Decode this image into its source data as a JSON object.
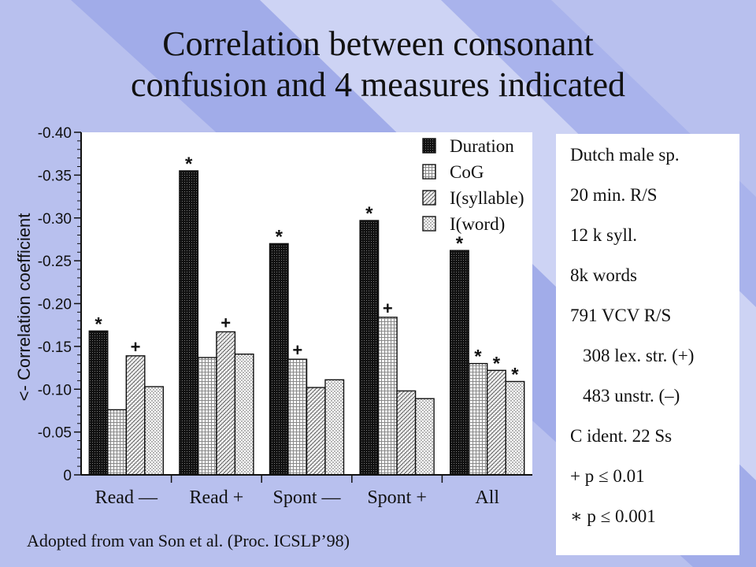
{
  "title": {
    "line1": "Correlation between consonant",
    "line2": "confusion and 4 measures indicated"
  },
  "source_note": "Adopted from van Son et al. (Proc. ICSLP’98)",
  "info_panel": [
    "Dutch male sp.",
    "20 min. R/S",
    "12 k syll.",
    "8k words",
    "791 VCV R/S",
    "308 lex. str. (+)",
    "483 unstr. (–)",
    "C ident. 22 Ss",
    "+ p ≤ 0.01",
    "∗ p ≤ 0.001"
  ],
  "colors": {
    "background": "#b8c0ee",
    "stripe": "#8e9be6",
    "stripe_light": "#e4e7fa",
    "panel": "#ffffff"
  },
  "chart_data": {
    "type": "bar",
    "ylabel": "<- Correlation coefficient",
    "y_axis_inverted": true,
    "ylim": [
      0,
      -0.4
    ],
    "yticks": [
      "-0.40",
      "-0.35",
      "-0.30",
      "-0.25",
      "-0.20",
      "-0.15",
      "-0.10",
      "-0.05",
      "0"
    ],
    "categories": [
      "Read —",
      "Read +",
      "Spont —",
      "Spont +",
      "All"
    ],
    "legend_position": "top-right",
    "series": [
      {
        "name": "Duration",
        "values": [
          -0.168,
          -0.355,
          -0.27,
          -0.297,
          -0.262
        ],
        "markers": [
          "*",
          "*",
          "*",
          "*",
          "*"
        ]
      },
      {
        "name": "CoG",
        "values": [
          -0.076,
          -0.137,
          -0.135,
          -0.184,
          -0.13
        ],
        "markers": [
          "",
          "",
          "+",
          "+",
          "*"
        ]
      },
      {
        "name": "I(syllable)",
        "values": [
          -0.139,
          -0.167,
          -0.102,
          -0.098,
          -0.122
        ],
        "markers": [
          "+",
          "+",
          "",
          "",
          "*"
        ]
      },
      {
        "name": "I(word)",
        "values": [
          -0.103,
          -0.141,
          -0.111,
          -0.089,
          -0.109
        ],
        "markers": [
          "",
          "",
          "",
          "",
          "*"
        ]
      }
    ],
    "series_fills": [
      "dense-dark",
      "grid-light",
      "hatch-light",
      "dots-light"
    ]
  }
}
